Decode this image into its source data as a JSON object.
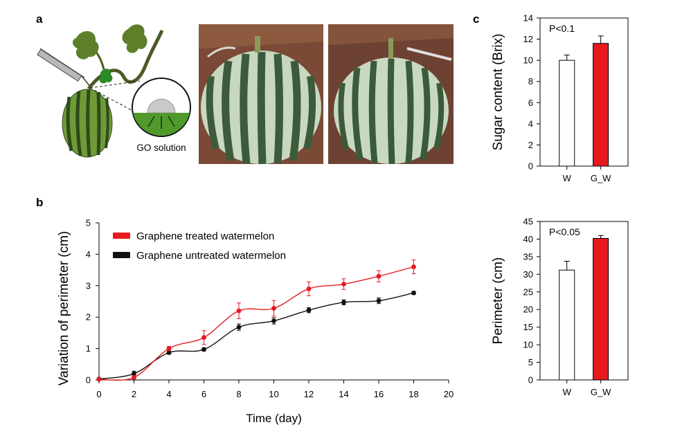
{
  "panels": {
    "a": {
      "letter": "a",
      "go_label": "GO solution"
    },
    "b": {
      "letter": "b"
    },
    "c": {
      "letter": "c"
    }
  },
  "colors": {
    "treated": "#e8191f",
    "untreated": "#111111",
    "bar_w": "#ffffff",
    "bar_gw": "#e8191f",
    "melon_dark": "#3d5a3c",
    "melon_light": "#c7d8bf",
    "soil": "#7a4a36"
  },
  "chart_data": [
    {
      "id": "perimeter_variation",
      "type": "line",
      "xlabel": "Time  (day)",
      "ylabel": "Variation of perimeter (cm)",
      "xlim": [
        0,
        20
      ],
      "ylim": [
        0,
        5
      ],
      "xticks": [
        0,
        2,
        4,
        6,
        8,
        10,
        12,
        14,
        16,
        18,
        20
      ],
      "yticks": [
        0,
        1,
        2,
        3,
        4,
        5
      ],
      "legend_position": "top-left",
      "grid": false,
      "series": [
        {
          "name": "Graphene treated watermelon",
          "color": "#e8191f",
          "x": [
            0,
            2,
            4,
            6,
            8,
            10,
            12,
            14,
            16,
            18
          ],
          "y": [
            0.02,
            0.08,
            1.0,
            1.35,
            2.2,
            2.28,
            2.9,
            3.05,
            3.3,
            3.6
          ],
          "err": [
            0.03,
            0.06,
            0.07,
            0.22,
            0.25,
            0.25,
            0.22,
            0.17,
            0.18,
            0.22
          ]
        },
        {
          "name": "Graphene untreated watermelon",
          "color": "#111111",
          "x": [
            0,
            2,
            4,
            6,
            8,
            10,
            12,
            14,
            16,
            18
          ],
          "y": [
            0.03,
            0.2,
            0.87,
            0.97,
            1.68,
            1.88,
            2.22,
            2.47,
            2.52,
            2.77
          ],
          "err": [
            0.02,
            0.08,
            0.05,
            0.05,
            0.1,
            0.1,
            0.08,
            0.08,
            0.09,
            0.05
          ]
        }
      ]
    },
    {
      "id": "sugar_content",
      "type": "bar",
      "ylabel": "Sugar content (Brix)",
      "annotation": "P<0.1",
      "ylim": [
        0,
        14
      ],
      "yticks": [
        0,
        2,
        4,
        6,
        8,
        10,
        12,
        14
      ],
      "categories": [
        "W",
        "G_W"
      ],
      "values": [
        10.0,
        11.6
      ],
      "err": [
        0.5,
        0.7
      ],
      "bar_colors": [
        "#ffffff",
        "#e8191f"
      ]
    },
    {
      "id": "perimeter",
      "type": "bar",
      "ylabel": "Perimeter (cm)",
      "annotation": "P<0.05",
      "ylim": [
        0,
        45
      ],
      "yticks": [
        0,
        5,
        10,
        15,
        20,
        25,
        30,
        35,
        40,
        45
      ],
      "categories": [
        "W",
        "G_W"
      ],
      "values": [
        31.2,
        40.2
      ],
      "err": [
        2.5,
        0.8
      ],
      "bar_colors": [
        "#ffffff",
        "#e8191f"
      ]
    }
  ]
}
